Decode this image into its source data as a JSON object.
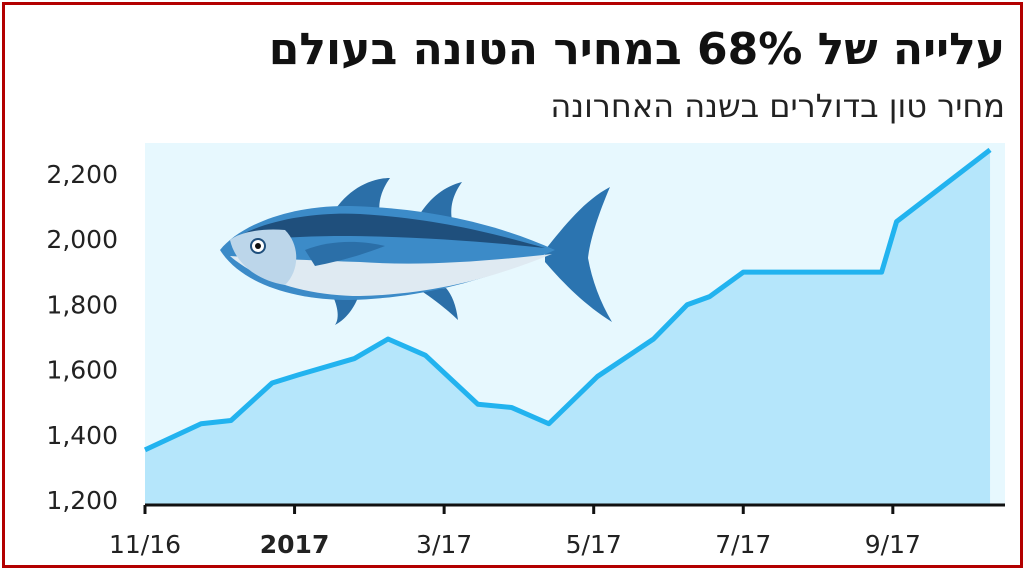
{
  "chart_data": {
    "type": "area",
    "title": "עלייה של 68% במחיר הטונה בעולם",
    "subtitle": "מחיר טון בדולרים בשנה האחרונה",
    "x": [
      0,
      0.75,
      1.15,
      1.7,
      2.05,
      2.8,
      3.25,
      3.75,
      4.45,
      4.9,
      5.4,
      6.05,
      6.8,
      7.25,
      7.55,
      8,
      9.85,
      10.05,
      11.3
    ],
    "values": [
      1360,
      1440,
      1450,
      1565,
      1590,
      1640,
      1700,
      1650,
      1500,
      1490,
      1440,
      1585,
      1700,
      1805,
      1830,
      1905,
      1905,
      2060,
      2280
    ],
    "xlim": [
      0,
      11.5
    ],
    "xticks": [
      {
        "value": 0,
        "label": "11/16"
      },
      {
        "value": 2,
        "label": "2017"
      },
      {
        "value": 4,
        "label": "3/17"
      },
      {
        "value": 6,
        "label": "5/17"
      },
      {
        "value": 8,
        "label": "7/17"
      },
      {
        "value": 10,
        "label": "9/17"
      }
    ],
    "ylim": [
      1200,
      2300
    ],
    "yticks": [
      {
        "value": 1200,
        "label": "1,200"
      },
      {
        "value": 1400,
        "label": "1,400"
      },
      {
        "value": 1600,
        "label": "1,600"
      },
      {
        "value": 1800,
        "label": "1,800"
      },
      {
        "value": 2000,
        "label": "2,000"
      },
      {
        "value": 2200,
        "label": "2,200"
      }
    ],
    "line_color": "#22b3ef",
    "area_color": "#b5e6fb",
    "background_color": "#e7f8fe"
  }
}
